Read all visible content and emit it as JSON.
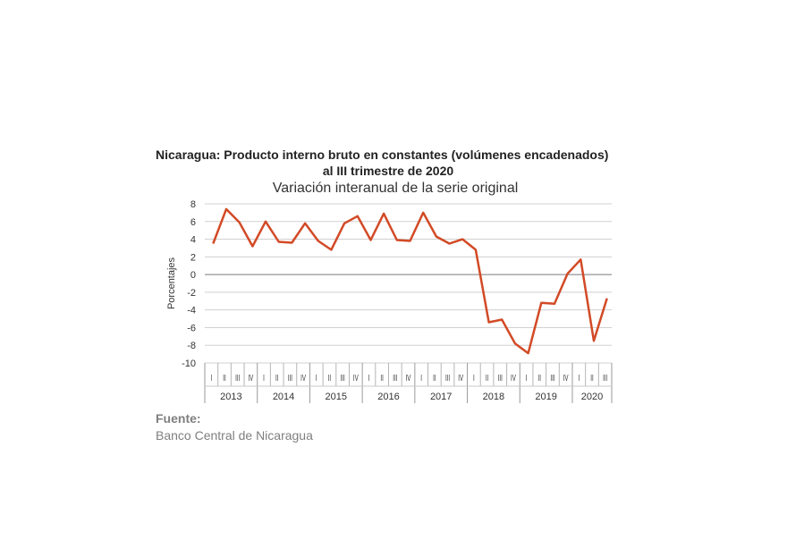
{
  "chart_data": {
    "type": "line",
    "title_line1": "Nicaragua: Producto interno bruto en constantes (volúmenes encadenados)",
    "title_line2": "al III trimestre de 2020",
    "subtitle": "Variación interanual de la serie original",
    "ylabel": "Porcentajes",
    "ylim": [
      -10,
      8
    ],
    "yticks": [
      8,
      6,
      4,
      2,
      0,
      -2,
      -4,
      -6,
      -8,
      -10
    ],
    "grid": true,
    "line_color": "#d24a26",
    "quarter_labels": [
      "I",
      "II",
      "III",
      "IV"
    ],
    "years": [
      {
        "label": "2013",
        "quarters": 4
      },
      {
        "label": "2014",
        "quarters": 4
      },
      {
        "label": "2015",
        "quarters": 4
      },
      {
        "label": "2016",
        "quarters": 4
      },
      {
        "label": "2017",
        "quarters": 4
      },
      {
        "label": "2018",
        "quarters": 4
      },
      {
        "label": "2019",
        "quarters": 4
      },
      {
        "label": "2020",
        "quarters": 3
      }
    ],
    "values": [
      3.5,
      7.4,
      5.9,
      3.2,
      6.0,
      3.7,
      3.6,
      5.8,
      3.8,
      2.8,
      5.8,
      6.6,
      3.9,
      6.9,
      3.9,
      3.8,
      7.0,
      4.3,
      3.5,
      4.0,
      2.8,
      -5.4,
      -5.1,
      -7.8,
      -8.9,
      -3.2,
      -3.3,
      0.1,
      1.7,
      -7.5,
      -2.7
    ]
  },
  "source": {
    "label": "Fuente:",
    "text": "Banco Central de Nicaragua"
  }
}
